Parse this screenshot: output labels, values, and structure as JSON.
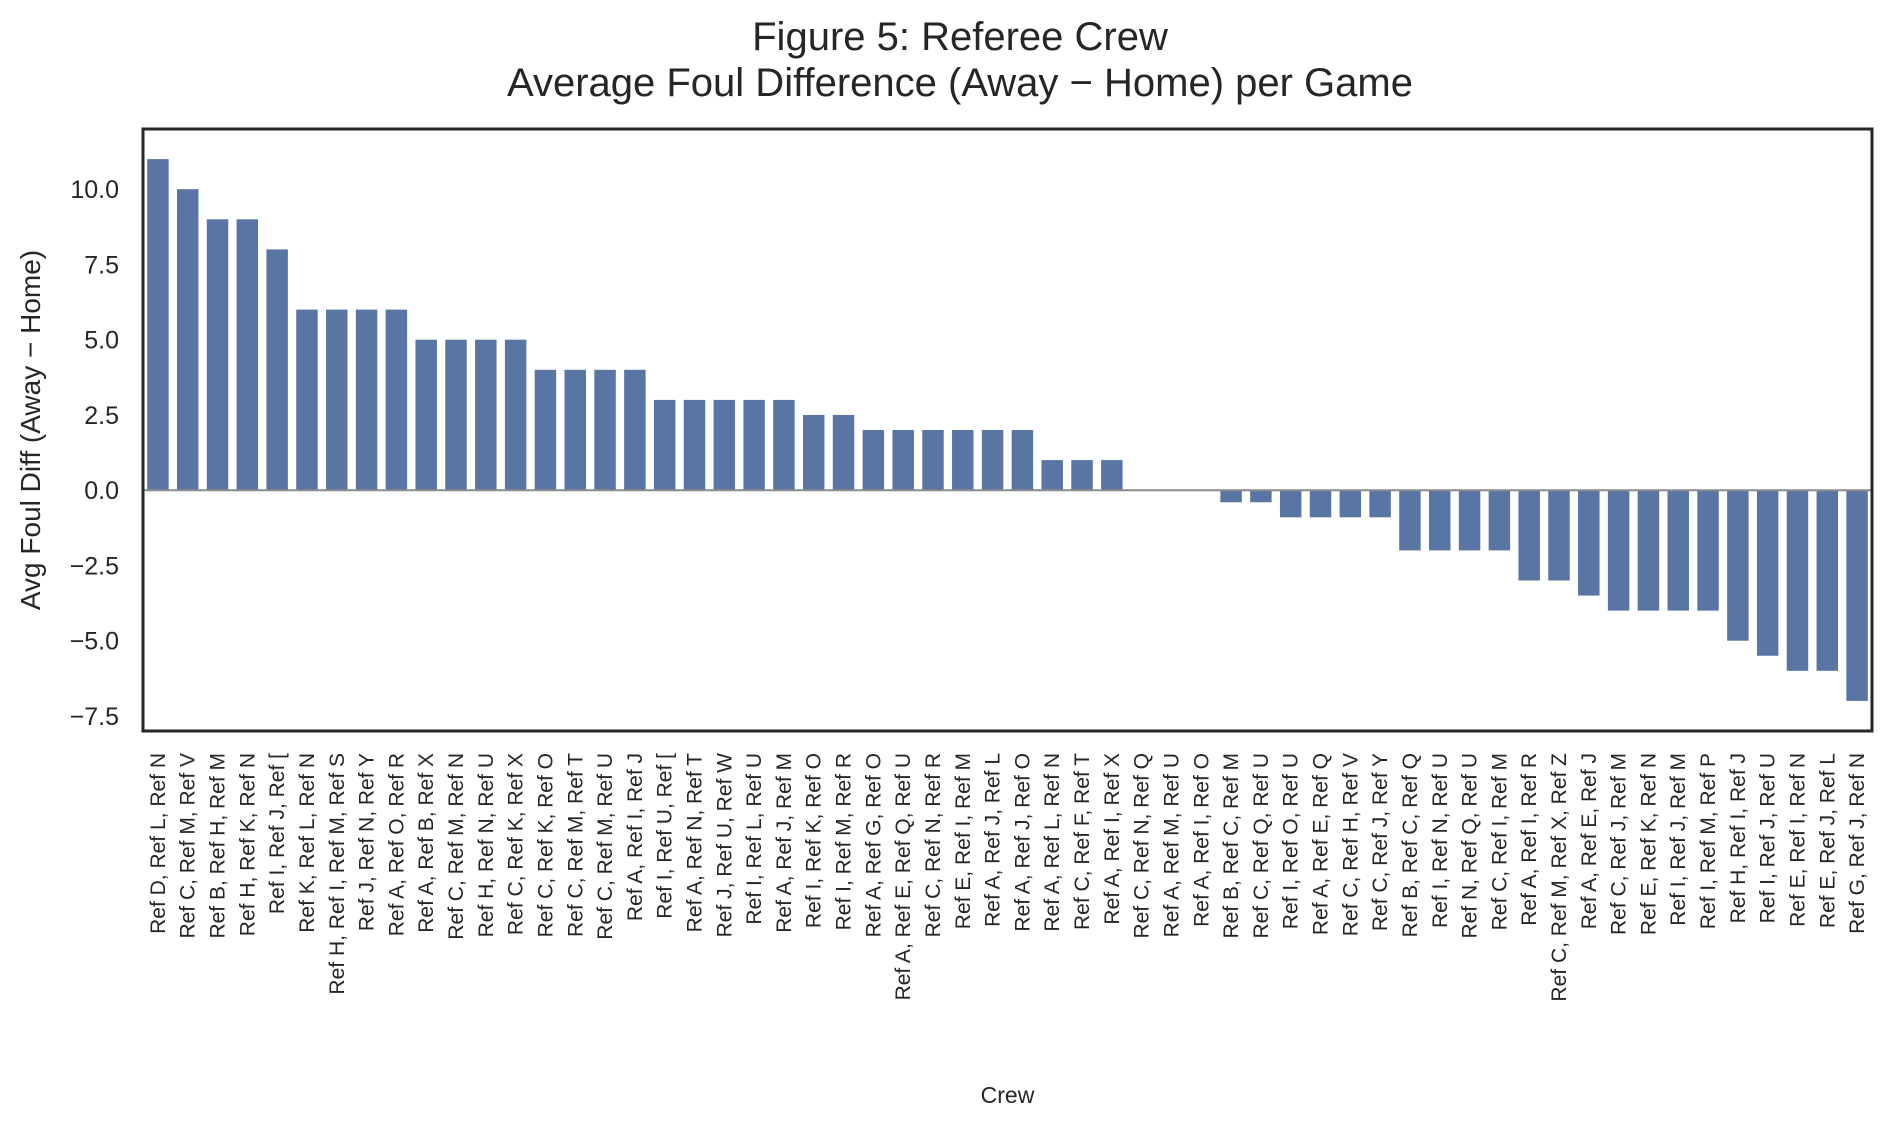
{
  "chart_data": {
    "type": "bar",
    "title": "Figure 5: Referee Crew",
    "subtitle": "Average Foul Difference (Away − Home) per Game",
    "xlabel": "Crew",
    "ylabel": "Avg Foul Diff (Away − Home)",
    "ylim": [
      -8.0,
      12.0
    ],
    "yticks": [
      "10.0",
      "7.5",
      "5.0",
      "2.5",
      "0.0",
      "−2.5",
      "−5.0",
      "−7.5"
    ],
    "ytick_values": [
      10.0,
      7.5,
      5.0,
      2.5,
      0.0,
      -2.5,
      -5.0,
      -7.5
    ],
    "grid": false,
    "zero_line": true,
    "bar_color": "#5875a4",
    "zero_line_color": "#8c8c8c",
    "categories": [
      "Ref D, Ref L, Ref N",
      "Ref C, Ref M, Ref V",
      "Ref B, Ref H, Ref M",
      "Ref H, Ref K, Ref N",
      "Ref I, Ref J, Ref [",
      "Ref K, Ref L, Ref N",
      "Ref H, Ref I, Ref M, Ref S",
      "Ref J, Ref N, Ref Y",
      "Ref A, Ref O, Ref R",
      "Ref A, Ref B, Ref X",
      "Ref C, Ref M, Ref N",
      "Ref H, Ref N, Ref U",
      "Ref C, Ref K, Ref X",
      "Ref C, Ref K, Ref O",
      "Ref C, Ref M, Ref T",
      "Ref C, Ref M, Ref U",
      "Ref A, Ref I, Ref J",
      "Ref I, Ref U, Ref [",
      "Ref A, Ref N, Ref T",
      "Ref J, Ref U, Ref W",
      "Ref I, Ref L, Ref U",
      "Ref A, Ref J, Ref M",
      "Ref I, Ref K, Ref O",
      "Ref I, Ref M, Ref R",
      "Ref A, Ref G, Ref O",
      "Ref A, Ref E, Ref Q, Ref U",
      "Ref C, Ref N, Ref R",
      "Ref E, Ref I, Ref M",
      "Ref A, Ref J, Ref L",
      "Ref A, Ref J, Ref O",
      "Ref A, Ref L, Ref N",
      "Ref C, Ref F, Ref T",
      "Ref A, Ref I, Ref X",
      "Ref C, Ref N, Ref Q",
      "Ref A, Ref M, Ref U",
      "Ref A, Ref I, Ref O",
      "Ref B, Ref C, Ref M",
      "Ref C, Ref Q, Ref U",
      "Ref I, Ref O, Ref U",
      "Ref A, Ref E, Ref Q",
      "Ref C, Ref H, Ref V",
      "Ref C, Ref J, Ref Y",
      "Ref B, Ref C, Ref Q",
      "Ref I, Ref N, Ref U",
      "Ref N, Ref Q, Ref U",
      "Ref C, Ref I, Ref M",
      "Ref A, Ref I, Ref R",
      "Ref C, Ref M, Ref X, Ref Z",
      "Ref A, Ref E, Ref J",
      "Ref C, Ref J, Ref M",
      "Ref E, Ref K, Ref N",
      "Ref I, Ref J, Ref M",
      "Ref I, Ref M, Ref P",
      "Ref H, Ref I, Ref J",
      "Ref I, Ref J, Ref U",
      "Ref E, Ref I, Ref N",
      "Ref E, Ref J, Ref L",
      "Ref G, Ref J, Ref N"
    ],
    "values": [
      11.0,
      10.0,
      9.0,
      9.0,
      8.0,
      6.0,
      6.0,
      6.0,
      6.0,
      5.0,
      5.0,
      5.0,
      5.0,
      4.0,
      4.0,
      4.0,
      4.0,
      3.0,
      3.0,
      3.0,
      3.0,
      3.0,
      2.5,
      2.5,
      2.0,
      2.0,
      2.0,
      2.0,
      2.0,
      2.0,
      1.0,
      1.0,
      1.0,
      0.0,
      0.0,
      0.0,
      -0.4,
      -0.4,
      -0.9,
      -0.9,
      -0.9,
      -0.9,
      -2.0,
      -2.0,
      -2.0,
      -2.0,
      -3.0,
      -3.0,
      -3.5,
      -4.0,
      -4.0,
      -4.0,
      -4.0,
      -5.0,
      -5.5,
      -6.0,
      -6.0,
      -7.0
    ]
  }
}
